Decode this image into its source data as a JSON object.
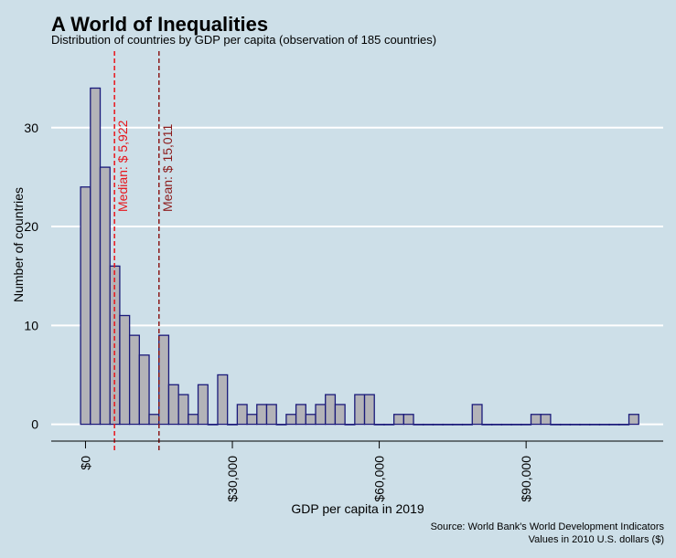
{
  "title": "A World of Inequalities",
  "subtitle": "Distribution of countries by GDP per capita (observation of 185 countries)",
  "source_line1": "Source: World Bank's World Development Indicators",
  "source_line2": "Values in 2010 U.S. dollars ($)",
  "colors": {
    "background": "#cddfe8",
    "bar_fill": "#b3b3b8",
    "bar_stroke": "#1a1a7a",
    "gridline": "#ffffff",
    "median_line": "#e8141a",
    "mean_line": "#8b1a1a",
    "text": "#000000"
  },
  "chart_data": {
    "type": "bar",
    "subtype": "histogram",
    "title": "A World of Inequalities",
    "subtitle": "Distribution of countries by GDP per capita (observation of 185 countries)",
    "xlabel": "GDP per capita in 2019",
    "ylabel": "Number of countries",
    "bin_width": 2000,
    "bin_starts": [
      -1000,
      1000,
      3000,
      5000,
      7000,
      9000,
      11000,
      13000,
      15000,
      17000,
      19000,
      21000,
      23000,
      25000,
      27000,
      29000,
      31000,
      33000,
      35000,
      37000,
      39000,
      41000,
      43000,
      45000,
      47000,
      49000,
      51000,
      53000,
      55000,
      57000,
      59000,
      61000,
      63000,
      65000,
      67000,
      69000,
      71000,
      73000,
      75000,
      77000,
      79000,
      81000,
      83000,
      85000,
      87000,
      89000,
      91000,
      93000,
      95000,
      97000,
      99000,
      101000,
      103000,
      105000,
      107000,
      109000,
      111000
    ],
    "values": [
      24,
      34,
      26,
      16,
      11,
      9,
      7,
      1,
      9,
      4,
      3,
      1,
      4,
      0,
      5,
      0,
      2,
      1,
      2,
      2,
      0,
      1,
      2,
      1,
      2,
      3,
      2,
      0,
      3,
      3,
      0,
      0,
      1,
      1,
      0,
      0,
      0,
      0,
      0,
      0,
      2,
      0,
      0,
      0,
      0,
      0,
      1,
      1,
      0,
      0,
      0,
      0,
      0,
      0,
      0,
      0,
      1
    ],
    "xlim": [
      -7000,
      118000
    ],
    "ylim": [
      -1.7,
      37
    ],
    "x_ticks": [
      0,
      30000,
      60000,
      90000
    ],
    "x_tick_labels": [
      "$0",
      "$30,000",
      "$60,000",
      "$90,000"
    ],
    "y_ticks": [
      0,
      10,
      20,
      30
    ],
    "y_tick_labels": [
      "0",
      "10",
      "20",
      "30"
    ],
    "grid": "horizontal",
    "reference_lines": [
      {
        "name": "median",
        "x": 5922,
        "label": "Median: $ 5,922",
        "style": "dashed"
      },
      {
        "name": "mean",
        "x": 15011,
        "label": "Mean: $ 15,011",
        "style": "dashed"
      }
    ]
  }
}
